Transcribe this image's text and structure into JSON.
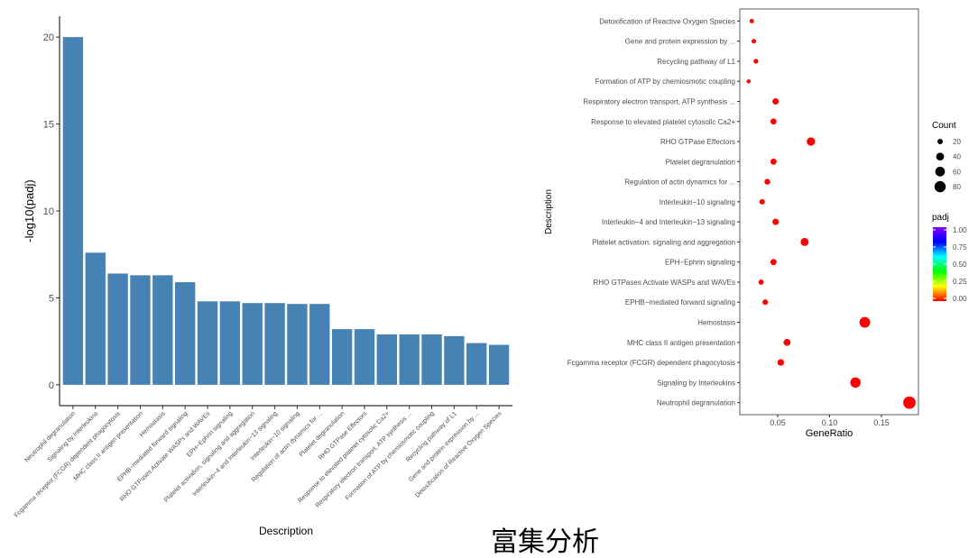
{
  "chart_data": [
    {
      "type": "bar",
      "xlabel": "Description",
      "ylabel": "-log10(padj)",
      "ylim": [
        0,
        20
      ],
      "yticks": [
        "0",
        "5",
        "10",
        "15",
        "20"
      ],
      "grid": false,
      "bar_color": "#4682B4",
      "categories": [
        "Neutrophil degranulation",
        "Signaling by Interleukins",
        "Fcgamma receptor (FCGR) dependent phagocytosis",
        "MHC class II antigen presentation",
        "Hemostasis",
        "EPHB−mediated forward signaling",
        "RHO GTPases Activate WASPs and WAVEs",
        "EPH−Ephrin signaling",
        "Platelet activation, signaling and aggregation",
        "Interleukin−4 and Interleukin−13 signaling",
        "Interleukin−10 signaling",
        "Regulation of actin dynamics for ...",
        "Platelet degranulation",
        "RHO GTPase Effectors",
        "Response to elevated platelet cytosolic Ca2+",
        "Respiratory electron transport, ATP synthesis ...",
        "Formation of ATP by chemiosmotic coupling",
        "Recycling pathway of L1",
        "Gene and protein expression by ...",
        "Detoxification of Reactive Oxygen Species"
      ],
      "values": [
        20.0,
        7.6,
        6.4,
        6.3,
        6.3,
        5.9,
        4.8,
        4.8,
        4.7,
        4.7,
        4.65,
        4.65,
        3.2,
        3.2,
        2.9,
        2.9,
        2.9,
        2.8,
        2.4,
        2.3
      ]
    },
    {
      "type": "scatter",
      "xlabel": "GeneRatio",
      "ylabel": "Description",
      "xlim": [
        0.0135,
        0.1857
      ],
      "xticks": [
        "0.05",
        "0.10",
        "0.15"
      ],
      "grid": false,
      "legend_position": "right",
      "categories": [
        "Detoxification of Reactive Oxygen Species",
        "Gene and protein expression by ...",
        "Recycling pathway of L1",
        "Formation of ATP by chemiosmotic coupling",
        "Respiratory electron transport, ATP synthesis ...",
        "Response to elevated platelet cytosolic Ca2+",
        "RHO GTPase Effectors",
        "Platelet degranulation",
        "Regulation of actin dynamics for ...",
        "Interleukin−10 signaling",
        "Interleukin−4 and Interleukin−13 signaling",
        "Platelet activation, signaling and aggregation",
        "EPH−Ephrin signaling",
        "RHO GTPases Activate WASPs and WAVEs",
        "EPHB−mediated forward signaling",
        "Hemostasis",
        "MHC class II antigen presentation",
        "Fcgamma receptor (FCGR) dependent phagocytosis",
        "Signaling by Interleukins",
        "Neutrophil degranulation"
      ],
      "gene_ratio": [
        0.025,
        0.027,
        0.029,
        0.022,
        0.048,
        0.046,
        0.082,
        0.046,
        0.04,
        0.035,
        0.048,
        0.076,
        0.046,
        0.034,
        0.038,
        0.134,
        0.059,
        0.053,
        0.125,
        0.177
      ],
      "count": [
        14,
        15,
        16,
        12,
        27,
        25,
        45,
        25,
        22,
        20,
        27,
        42,
        25,
        19,
        21,
        74,
        32,
        29,
        69,
        98
      ],
      "padj": [
        0.005,
        0.004,
        0.0016,
        0.0013,
        0.0013,
        0.0013,
        0.00063,
        0.00063,
        2.2e-05,
        2.2e-05,
        2e-05,
        2e-05,
        1.6e-05,
        1.6e-05,
        1.3e-06,
        5e-07,
        5e-07,
        4e-07,
        2.5e-08,
        1e-20
      ],
      "size_legend": {
        "title": "Count",
        "values": [
          "20",
          "40",
          "60",
          "80"
        ]
      },
      "color_legend": {
        "title": "padj",
        "ticks": [
          "1.00",
          "0.75",
          "0.50",
          "0.25",
          "0.00"
        ],
        "colors": [
          "#FF0000",
          "#FFFF00",
          "#00FF00",
          "#00FFFF",
          "#0000FF",
          "#8000FF"
        ]
      }
    }
  ],
  "caption": "富集分析"
}
